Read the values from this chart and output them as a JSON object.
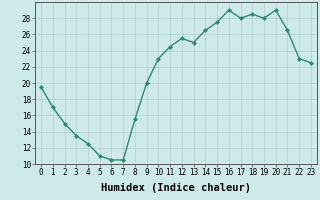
{
  "x": [
    0,
    1,
    2,
    3,
    4,
    5,
    6,
    7,
    8,
    9,
    10,
    11,
    12,
    13,
    14,
    15,
    16,
    17,
    18,
    19,
    20,
    21,
    22,
    23
  ],
  "y": [
    19.5,
    17.0,
    15.0,
    13.5,
    12.5,
    11.0,
    10.5,
    10.5,
    15.5,
    20.0,
    23.0,
    24.5,
    25.5,
    25.0,
    26.5,
    27.5,
    29.0,
    28.0,
    28.5,
    28.0,
    29.0,
    26.5,
    23.0,
    22.5
  ],
  "xlabel": "Humidex (Indice chaleur)",
  "ylim": [
    10,
    30
  ],
  "xlim": [
    -0.5,
    23.5
  ],
  "yticks": [
    10,
    12,
    14,
    16,
    18,
    20,
    22,
    24,
    26,
    28
  ],
  "xticks": [
    0,
    1,
    2,
    3,
    4,
    5,
    6,
    7,
    8,
    9,
    10,
    11,
    12,
    13,
    14,
    15,
    16,
    17,
    18,
    19,
    20,
    21,
    22,
    23
  ],
  "line_color": "#2d8b6f",
  "marker": "D",
  "marker_size": 2.0,
  "bg_color": "#cee9e9",
  "grid_color": "#b0cfcf",
  "tick_label_fontsize": 5.5,
  "xlabel_fontsize": 7.5,
  "line_width": 1.0
}
